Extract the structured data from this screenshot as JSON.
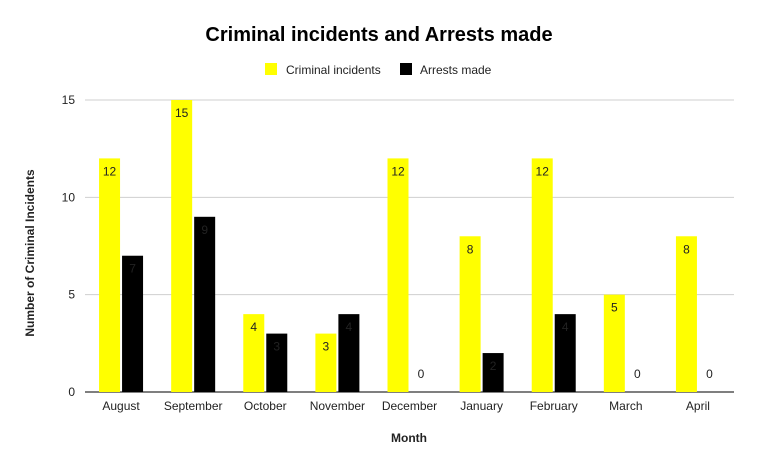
{
  "chart_data": {
    "type": "bar",
    "title": "Criminal incidents and Arrests made",
    "xlabel": "Month",
    "ylabel": "Number of Criminal Incidents",
    "categories": [
      "August",
      "September",
      "October",
      "November",
      "December",
      "January",
      "February",
      "March",
      "April"
    ],
    "series": [
      {
        "name": "Criminal incidents",
        "values": [
          12,
          15,
          4,
          3,
          12,
          8,
          12,
          5,
          8
        ],
        "color": "#ffff00",
        "label_color": "#222222"
      },
      {
        "name": "Arrests made",
        "values": [
          7,
          9,
          3,
          4,
          0,
          2,
          4,
          0,
          0
        ],
        "color": "#000000",
        "label_color": "#ffffff"
      }
    ],
    "ylim": [
      0,
      15
    ],
    "yticks": [
      0,
      5,
      10,
      15
    ],
    "grid": true,
    "legend_position": "top"
  }
}
